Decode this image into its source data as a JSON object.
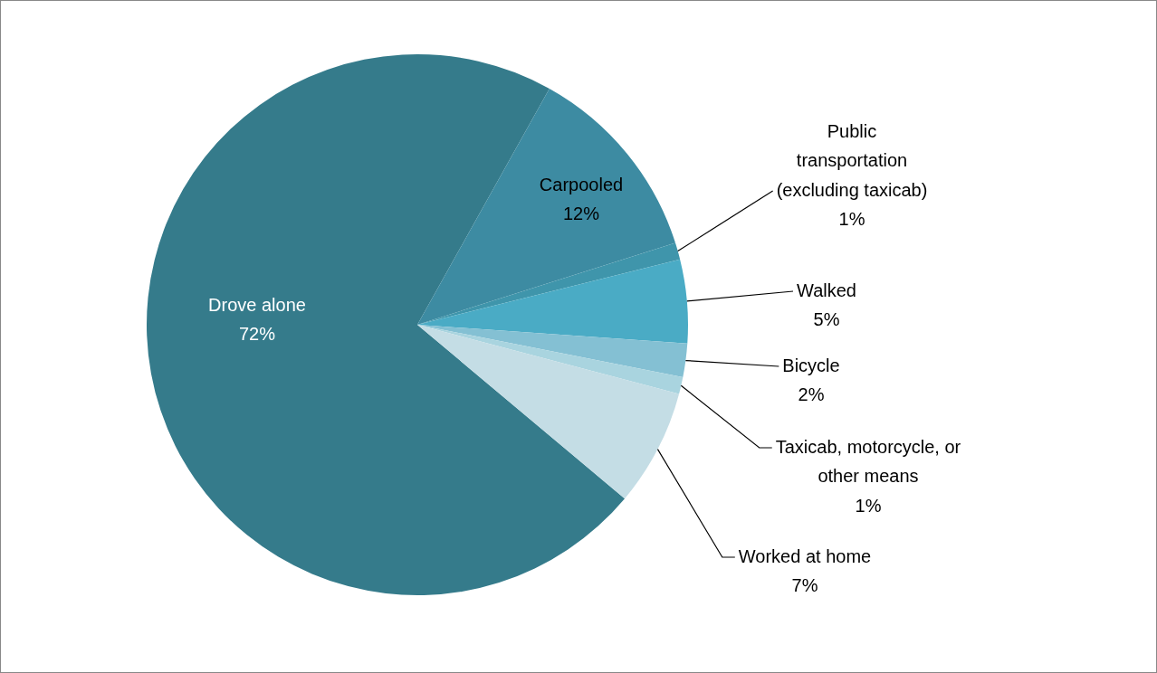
{
  "chart_data": {
    "type": "pie",
    "categories": [
      "Drove alone",
      "Carpooled",
      "Public transportation (excluding taxicab)",
      "Walked",
      "Bicycle",
      "Taxicab, motorcycle, or other means",
      "Worked at home"
    ],
    "values": [
      72,
      12,
      1,
      5,
      2,
      1,
      7
    ],
    "value_labels": [
      "72%",
      "12%",
      "1%",
      "5%",
      "2%",
      "1%",
      "7%"
    ],
    "colors": [
      "#357b8b",
      "#3d8ba2",
      "#3f95ab",
      "#4aabc5",
      "#84c0d3",
      "#a9d4df",
      "#c4dde5"
    ],
    "legend": false
  }
}
